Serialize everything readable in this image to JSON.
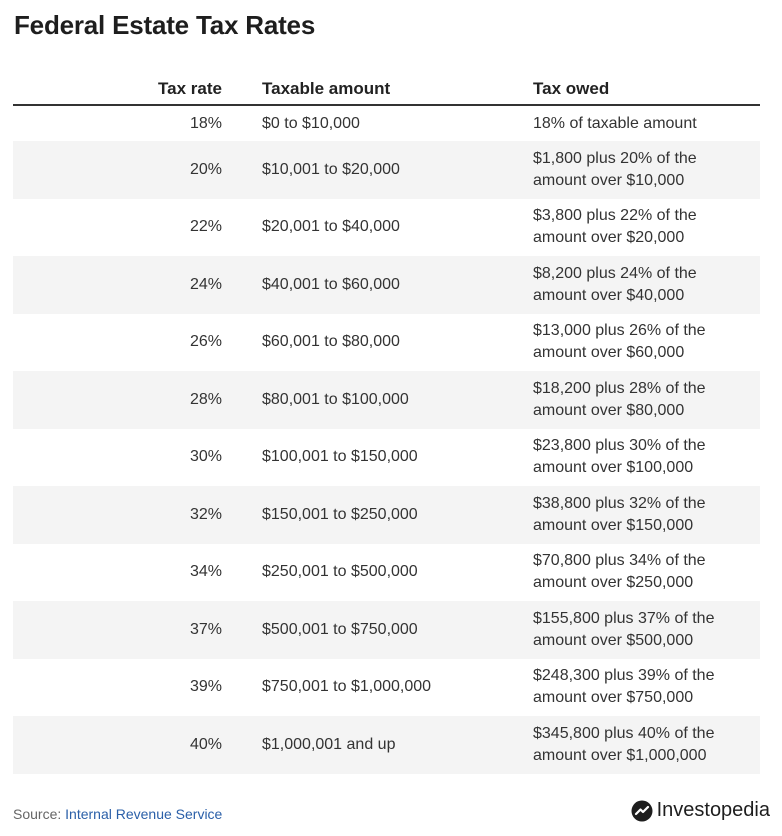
{
  "title": "Federal Estate Tax Rates",
  "table": {
    "headers": {
      "rate": "Tax rate",
      "amount": "Taxable amount",
      "owed": "Tax owed"
    },
    "rows": [
      {
        "rate": "18%",
        "amount": "$0 to $10,000",
        "owed": "18% of taxable amount"
      },
      {
        "rate": "20%",
        "amount": "$10,001 to $20,000",
        "owed": "$1,800 plus 20% of the amount over $10,000"
      },
      {
        "rate": "22%",
        "amount": "$20,001 to $40,000",
        "owed": "$3,800 plus 22% of the amount over $20,000"
      },
      {
        "rate": "24%",
        "amount": "$40,001 to $60,000",
        "owed": "$8,200 plus 24% of the amount over $40,000"
      },
      {
        "rate": "26%",
        "amount": "$60,001 to $80,000",
        "owed": "$13,000 plus 26% of the amount over $60,000"
      },
      {
        "rate": "28%",
        "amount": "$80,001 to $100,000",
        "owed": "$18,200 plus 28% of the amount over $80,000"
      },
      {
        "rate": "30%",
        "amount": "$100,001 to $150,000",
        "owed": "$23,800 plus 30% of the amount over $100,000"
      },
      {
        "rate": "32%",
        "amount": "$150,001 to $250,000",
        "owed": "$38,800 plus 32% of the amount over $150,000"
      },
      {
        "rate": "34%",
        "amount": "$250,001 to $500,000",
        "owed": "$70,800 plus 34% of the amount over $250,000"
      },
      {
        "rate": "37%",
        "amount": "$500,001 to $750,000",
        "owed": "$155,800 plus 37% of the amount over $500,000"
      },
      {
        "rate": "39%",
        "amount": "$750,001 to $1,000,000",
        "owed": "$248,300 plus 39% of the amount over $750,000"
      },
      {
        "rate": "40%",
        "amount": "$1,000,001 and up",
        "owed": "$345,800 plus 40% of the amount over $1,000,000"
      }
    ]
  },
  "footer": {
    "source_prefix": "Source: ",
    "source_link": "Internal Revenue Service",
    "brand": "Investopedia",
    "brand_icon": "investopedia-logo-icon"
  },
  "colors": {
    "link": "#2a5fa8",
    "alt_row": "#f4f4f4",
    "header_rule": "#333333"
  }
}
